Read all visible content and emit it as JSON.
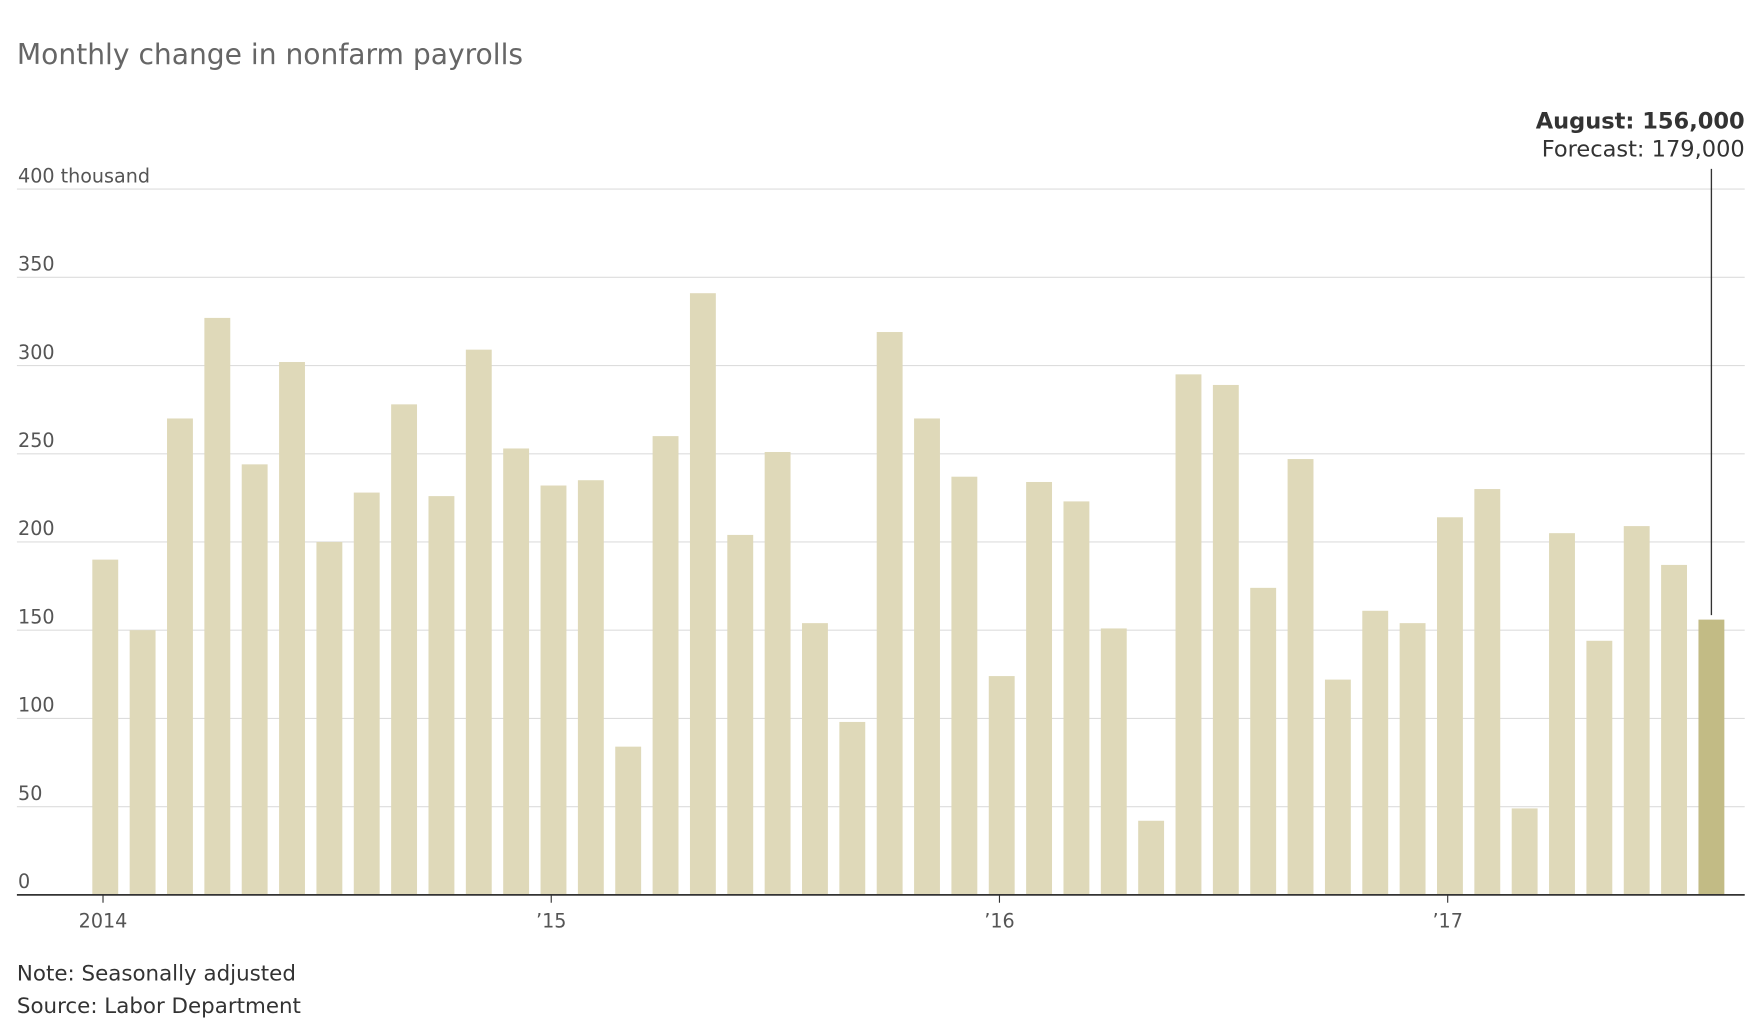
{
  "chart_data": {
    "type": "bar",
    "title": "Monthly change in nonfarm payrolls",
    "categories": [
      "2014",
      null,
      null,
      null,
      null,
      null,
      null,
      null,
      null,
      null,
      null,
      null,
      "’15",
      null,
      null,
      null,
      null,
      null,
      null,
      null,
      null,
      null,
      null,
      null,
      "’16",
      null,
      null,
      null,
      null,
      null,
      null,
      null,
      null,
      null,
      null,
      null,
      "’17",
      null,
      null,
      null,
      null,
      null,
      null,
      null
    ],
    "values": [
      190,
      150,
      270,
      327,
      244,
      302,
      200,
      228,
      278,
      226,
      309,
      253,
      232,
      235,
      84,
      260,
      341,
      204,
      251,
      154,
      98,
      319,
      270,
      237,
      124,
      234,
      223,
      151,
      42,
      295,
      289,
      174,
      247,
      122,
      161,
      154,
      214,
      230,
      49,
      205,
      144,
      209,
      187,
      156
    ],
    "color": "#dfd9b9",
    "highlight_color": "#c2bb85",
    "highlight_index": 43,
    "ylim": [
      0,
      400
    ],
    "yticks": [
      0,
      50,
      100,
      150,
      200,
      250,
      300,
      350,
      {
        "value": 400,
        "label": "400 thousand"
      }
    ],
    "grid": true,
    "annotations": [
      "August: 156,000",
      "Forecast: 179,000"
    ],
    "note": "Note: Seasonally adjusted",
    "source": "Source: Labor Department"
  }
}
